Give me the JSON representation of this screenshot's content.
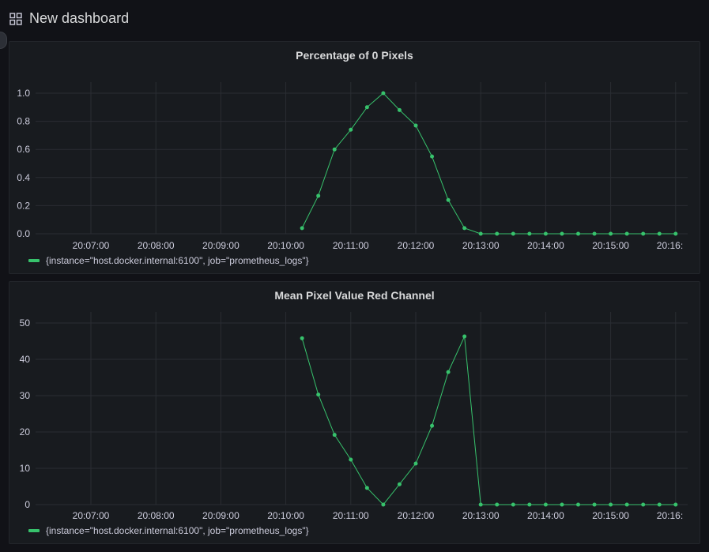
{
  "header": {
    "title": "New dashboard",
    "icon": "grid-icon"
  },
  "colors": {
    "series": "#37c26c",
    "grid": "#2a2d33",
    "tick_text": "#ccccdc"
  },
  "panels": [
    {
      "title": "Percentage of 0 Pixels",
      "legend": "{instance=\"host.docker.internal:6100\", job=\"prometheus_logs\"}"
    },
    {
      "title": "Mean Pixel Value Red Channel",
      "legend": "{instance=\"host.docker.internal:6100\", job=\"prometheus_logs\"}"
    }
  ],
  "chart_data": [
    {
      "type": "line",
      "title": "Percentage of 0 Pixels",
      "x_ticks": [
        "20:07:00",
        "20:08:00",
        "20:09:00",
        "20:10:00",
        "20:11:00",
        "20:12:00",
        "20:13:00",
        "20:14:00",
        "20:15:00",
        "20:16:"
      ],
      "y_ticks": [
        "0.0",
        "0.2",
        "0.4",
        "0.6",
        "0.8",
        "1.0"
      ],
      "ylim": [
        0,
        1.0
      ],
      "x_unit": "minutes since 20:06:00",
      "grid": true,
      "legend_position": "bottom-left",
      "series": [
        {
          "name": "{instance=\"host.docker.internal:6100\", job=\"prometheus_logs\"}",
          "x": [
            4.25,
            4.5,
            4.75,
            5.0,
            5.25,
            5.5,
            5.75,
            6.0,
            6.25,
            6.5,
            6.75,
            7.0,
            7.25,
            7.5,
            7.75,
            8.0,
            8.25,
            8.5,
            8.75,
            9.0,
            9.25,
            9.5,
            9.75,
            10.0
          ],
          "values": [
            0.04,
            0.27,
            0.6,
            0.74,
            0.9,
            1.0,
            0.88,
            0.77,
            0.55,
            0.24,
            0.04,
            0.0,
            0.0,
            0.0,
            0.0,
            0.0,
            0.0,
            0.0,
            0.0,
            0.0,
            0.0,
            0.0,
            0.0,
            0.0
          ]
        }
      ]
    },
    {
      "type": "line",
      "title": "Mean Pixel Value Red Channel",
      "x_ticks": [
        "20:07:00",
        "20:08:00",
        "20:09:00",
        "20:10:00",
        "20:11:00",
        "20:12:00",
        "20:13:00",
        "20:14:00",
        "20:15:00",
        "20:16:"
      ],
      "y_ticks": [
        "0",
        "10",
        "20",
        "30",
        "40",
        "50"
      ],
      "ylim": [
        0,
        50
      ],
      "x_unit": "minutes since 20:06:00",
      "grid": true,
      "legend_position": "bottom-left",
      "series": [
        {
          "name": "{instance=\"host.docker.internal:6100\", job=\"prometheus_logs\"}",
          "x": [
            4.25,
            4.5,
            4.75,
            5.0,
            5.25,
            5.5,
            5.75,
            6.0,
            6.25,
            6.5,
            6.75,
            7.0,
            7.25,
            7.5,
            7.75,
            8.0,
            8.25,
            8.5,
            8.75,
            9.0,
            9.25,
            9.5,
            9.75,
            10.0
          ],
          "values": [
            45.8,
            30.3,
            19.2,
            12.4,
            4.6,
            0.0,
            5.6,
            11.3,
            21.7,
            36.5,
            46.3,
            0.0,
            0.0,
            0.0,
            0.0,
            0.0,
            0.0,
            0.0,
            0.0,
            0.0,
            0.0,
            0.0,
            0.0,
            0.0
          ]
        }
      ]
    }
  ]
}
